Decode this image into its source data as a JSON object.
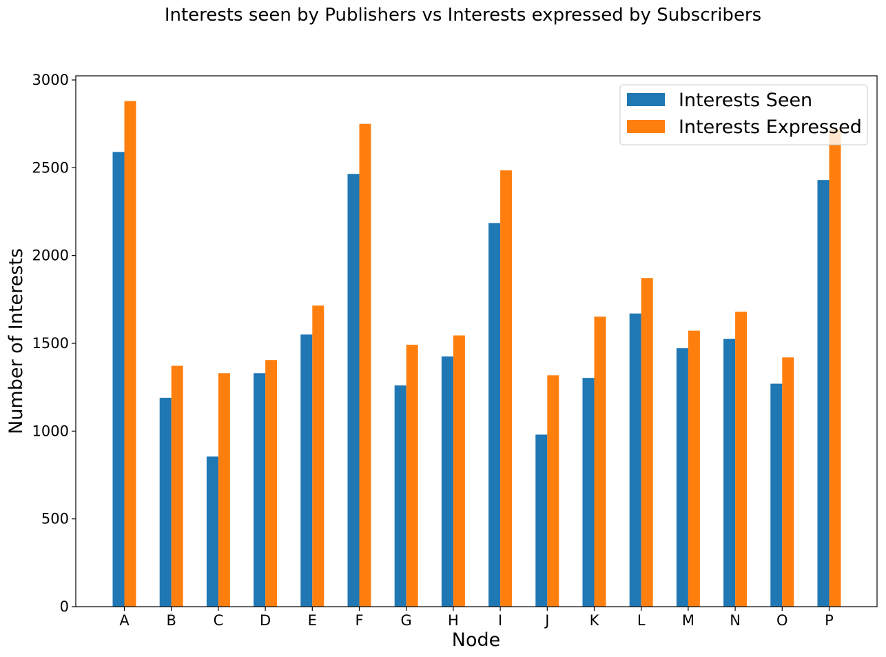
{
  "chart_data": {
    "type": "bar",
    "title": "Interests seen by Publishers vs Interests expressed by Subscribers",
    "xlabel": "Node",
    "ylabel": "Number of Interests",
    "categories": [
      "A",
      "B",
      "C",
      "D",
      "E",
      "F",
      "G",
      "H",
      "I",
      "J",
      "K",
      "L",
      "M",
      "N",
      "O",
      "P"
    ],
    "series": [
      {
        "name": "Interests Seen",
        "color": "#1f77b4",
        "values": [
          2590,
          1190,
          855,
          1330,
          1550,
          2465,
          1260,
          1425,
          2185,
          980,
          1303,
          1670,
          1472,
          1525,
          1270,
          2430
        ]
      },
      {
        "name": "Interests Expressed",
        "color": "#ff7f0e",
        "values": [
          2880,
          1372,
          1330,
          1405,
          1715,
          2750,
          1492,
          1545,
          2485,
          1318,
          1652,
          1872,
          1572,
          1680,
          1420,
          2720
        ]
      }
    ],
    "ylim": [
      0,
      3000
    ],
    "yticks": [
      0,
      500,
      1000,
      1500,
      2000,
      2500,
      3000
    ],
    "grid": false,
    "legend_position": "top-right"
  }
}
